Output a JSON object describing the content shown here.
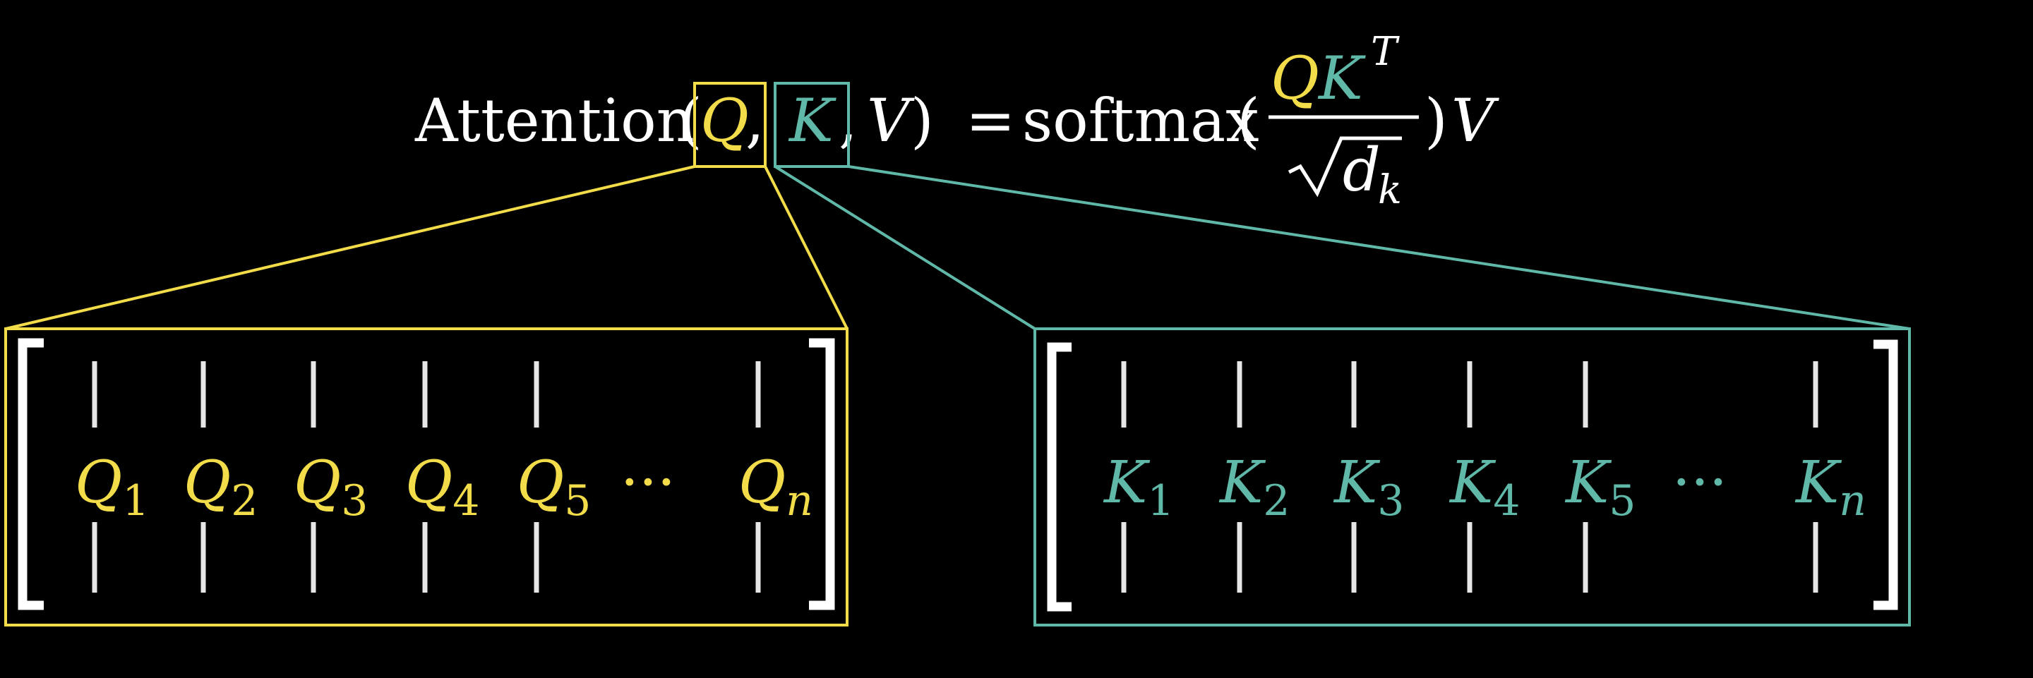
{
  "colors": {
    "background": "#000000",
    "text": "#ffffff",
    "query": "#f2dc4a",
    "key": "#5fb8a8",
    "bar": "#e6e6e6"
  },
  "formula": {
    "function_name": "Attention",
    "open_paren": "(",
    "q": "Q",
    "comma1": ",",
    "k": "K",
    "comma2": ",",
    "v": "V",
    "close_paren": ")",
    "equals": "=",
    "softmax": "softmax",
    "open_paren2": "(",
    "num_q": "Q",
    "num_k": "K",
    "num_sup": "T",
    "den_d": "d",
    "den_sub": "k",
    "close_paren2": ")",
    "trailing_v": "V"
  },
  "query_matrix": {
    "columns": [
      {
        "letter": "Q",
        "sub": "1"
      },
      {
        "letter": "Q",
        "sub": "2"
      },
      {
        "letter": "Q",
        "sub": "3"
      },
      {
        "letter": "Q",
        "sub": "4"
      },
      {
        "letter": "Q",
        "sub": "5"
      },
      {
        "letter": "···",
        "sub": ""
      },
      {
        "letter": "Q",
        "sub": "n"
      }
    ]
  },
  "key_matrix": {
    "columns": [
      {
        "letter": "K",
        "sub": "1"
      },
      {
        "letter": "K",
        "sub": "2"
      },
      {
        "letter": "K",
        "sub": "3"
      },
      {
        "letter": "K",
        "sub": "4"
      },
      {
        "letter": "K",
        "sub": "5"
      },
      {
        "letter": "···",
        "sub": ""
      },
      {
        "letter": "K",
        "sub": "n"
      }
    ]
  }
}
